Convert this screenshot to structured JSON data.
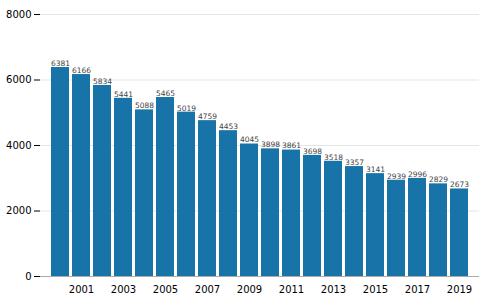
{
  "chart_data": {
    "type": "bar",
    "categories": [
      null,
      "2001",
      null,
      "2003",
      null,
      "2005",
      null,
      "2007",
      null,
      "2009",
      null,
      "2011",
      null,
      "2013",
      null,
      "2015",
      null,
      "2017",
      null,
      "2019"
    ],
    "values": [
      6381,
      6166,
      5834,
      5441,
      5088,
      5465,
      5019,
      4759,
      4453,
      4045,
      3898,
      3861,
      3698,
      3518,
      3357,
      3141,
      2939,
      2996,
      2829,
      2673
    ],
    "color": "#1873a8",
    "ylim": [
      0,
      8000
    ],
    "yticks": [
      0,
      2000,
      4000,
      6000,
      8000
    ],
    "grid": true,
    "data_labels": true
  }
}
